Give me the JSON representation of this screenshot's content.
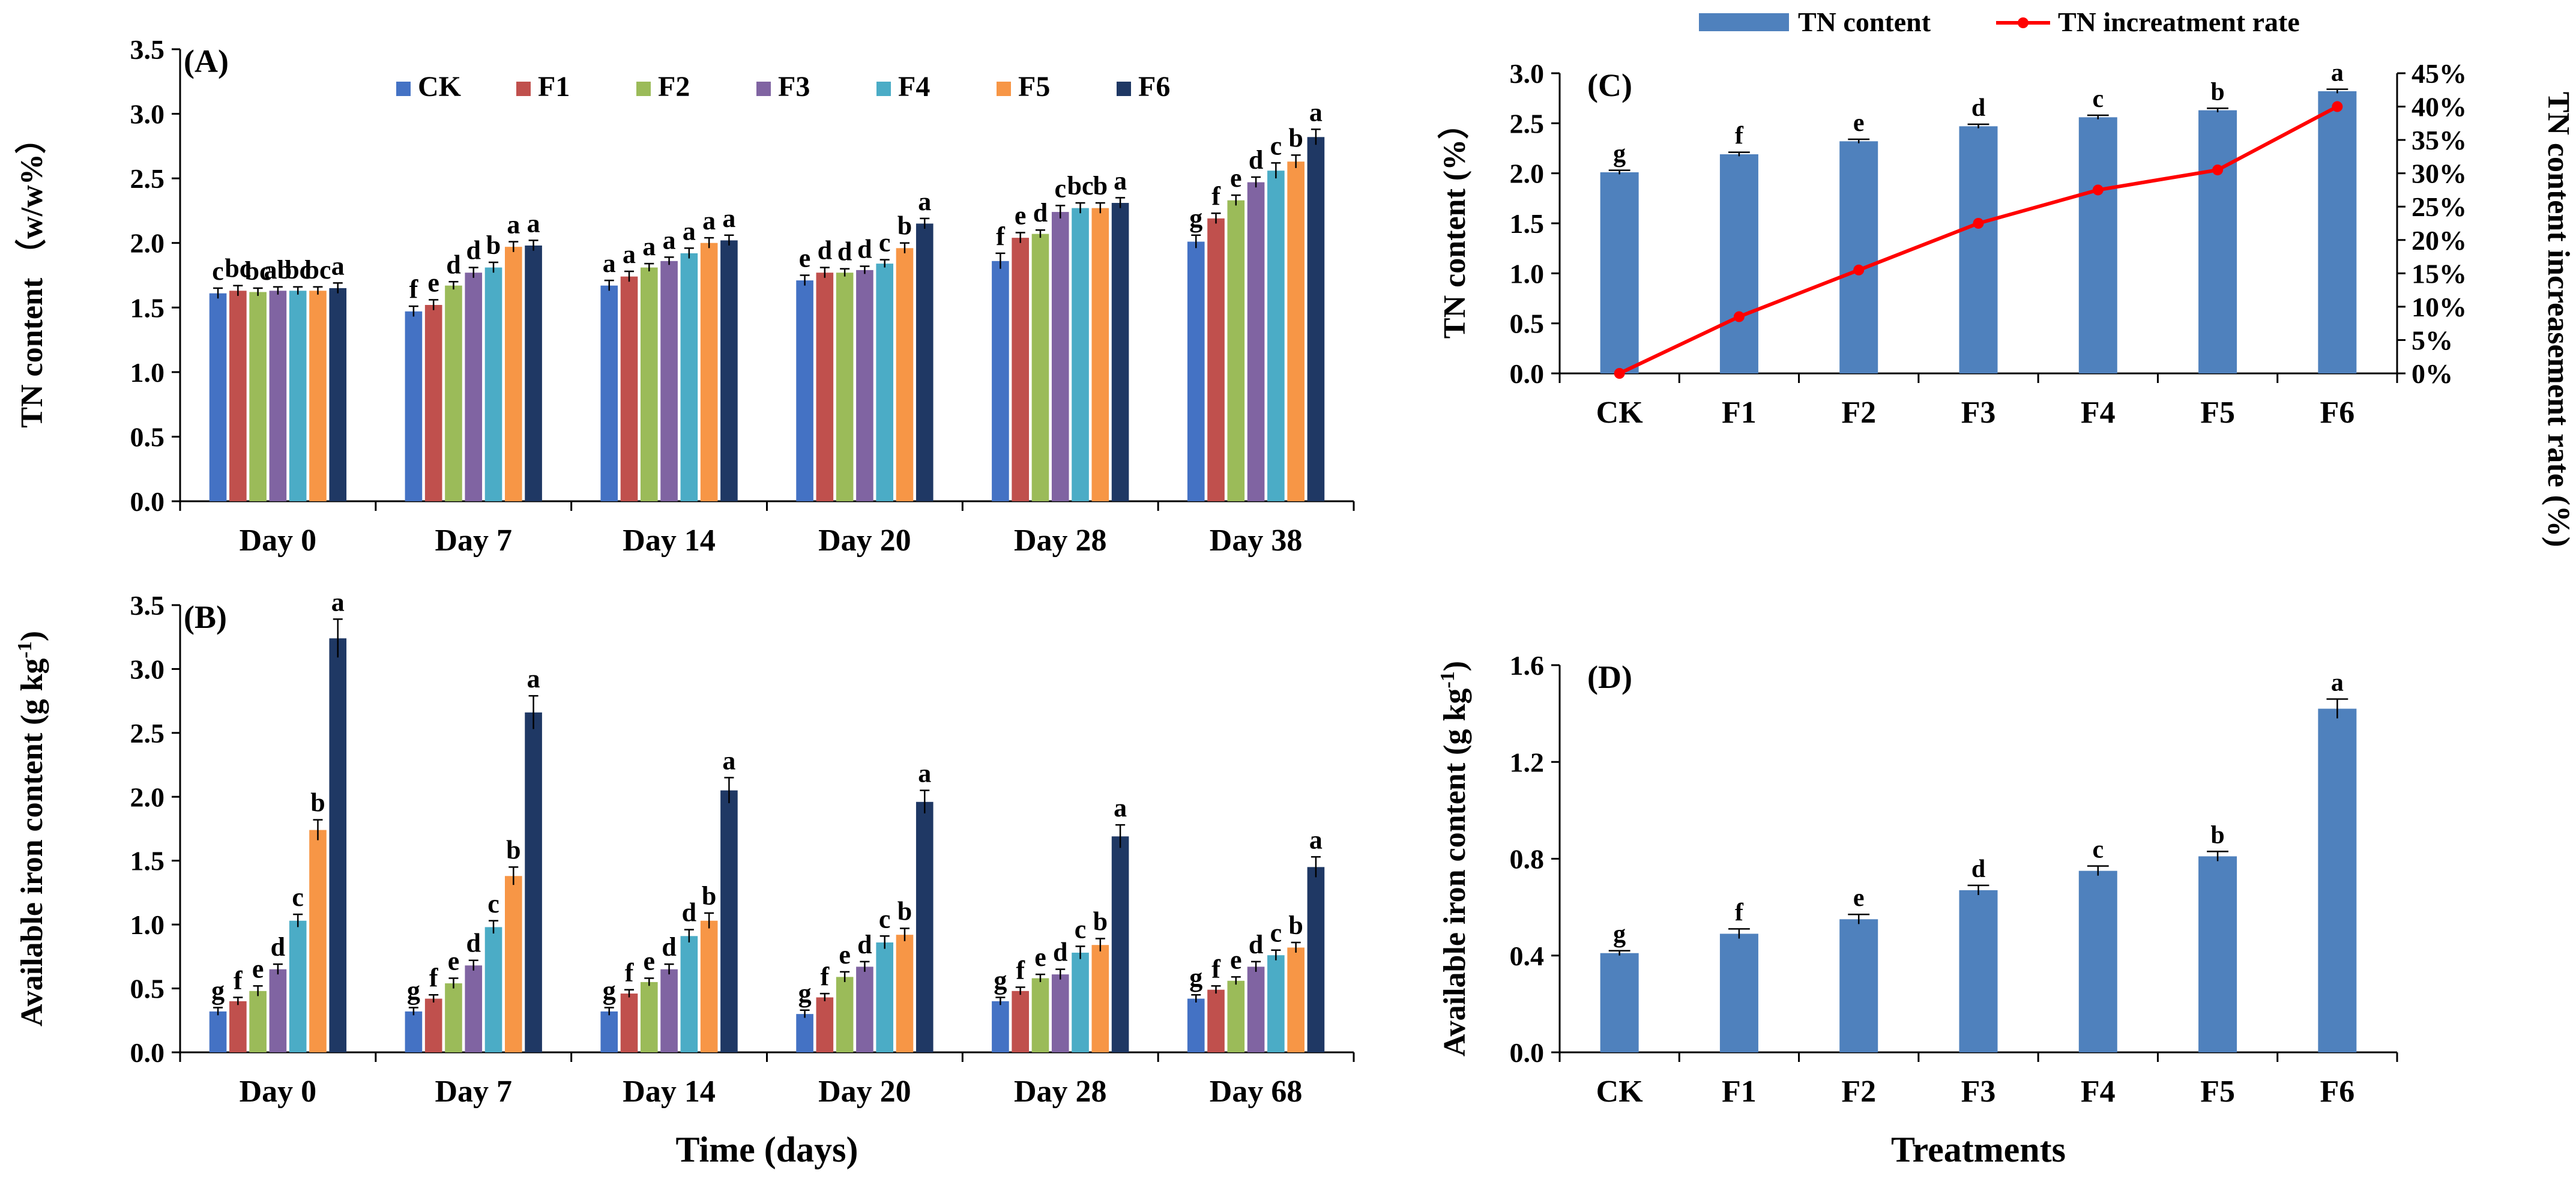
{
  "colors": {
    "CK": "#4472C4",
    "F1": "#C0504D",
    "F2": "#9BBB59",
    "F3": "#8064A2",
    "F4": "#4BACC6",
    "F5": "#F79646",
    "F6": "#1F3864",
    "single_bar": "#4F81BD",
    "rate_line": "#FF0000"
  },
  "chart_data": [
    {
      "id": "A",
      "panel_label": "(A)",
      "type": "bar",
      "ylabel": "TN content （w/w%）",
      "xlabel": "",
      "ylim": [
        0,
        3.5
      ],
      "yticks": [
        "0.0",
        "0.5",
        "1.0",
        "1.5",
        "2.0",
        "2.5",
        "3.0",
        "3.5"
      ],
      "legend": [
        "CK",
        "F1",
        "F2",
        "F3",
        "F4",
        "F5",
        "F6"
      ],
      "categories": [
        "Day 0",
        "Day 7",
        "Day 14",
        "Day 20",
        "Day 28",
        "Day 38"
      ],
      "series": [
        {
          "name": "CK",
          "values": [
            1.61,
            1.47,
            1.67,
            1.71,
            1.86,
            2.01
          ],
          "errors": [
            0.04,
            0.04,
            0.04,
            0.04,
            0.06,
            0.05
          ],
          "letters": [
            "c",
            "f",
            "a",
            "e",
            "f",
            "g"
          ]
        },
        {
          "name": "F1",
          "values": [
            1.63,
            1.52,
            1.74,
            1.77,
            2.04,
            2.19
          ],
          "errors": [
            0.04,
            0.04,
            0.04,
            0.04,
            0.04,
            0.04
          ],
          "letters": [
            "bc",
            "e",
            "a",
            "d",
            "e",
            "f"
          ]
        },
        {
          "name": "F2",
          "values": [
            1.62,
            1.67,
            1.81,
            1.77,
            2.07,
            2.33
          ],
          "errors": [
            0.03,
            0.03,
            0.03,
            0.03,
            0.03,
            0.04
          ],
          "letters": [
            "bc",
            "d",
            "a",
            "d",
            "d",
            "e"
          ]
        },
        {
          "name": "F3",
          "values": [
            1.63,
            1.77,
            1.86,
            1.79,
            2.24,
            2.47
          ],
          "errors": [
            0.03,
            0.04,
            0.03,
            0.03,
            0.05,
            0.04
          ],
          "letters": [
            "ab",
            "d",
            "a",
            "d",
            "c",
            "d"
          ]
        },
        {
          "name": "F4",
          "values": [
            1.63,
            1.81,
            1.92,
            1.84,
            2.27,
            2.56
          ],
          "errors": [
            0.03,
            0.04,
            0.04,
            0.03,
            0.04,
            0.06
          ],
          "letters": [
            "bc",
            "b",
            "a",
            "c",
            "bc",
            "c"
          ]
        },
        {
          "name": "F5",
          "values": [
            1.63,
            1.97,
            2.0,
            1.96,
            2.27,
            2.63
          ],
          "errors": [
            0.03,
            0.04,
            0.04,
            0.04,
            0.04,
            0.05
          ],
          "letters": [
            "bc",
            "a",
            "a",
            "b",
            "b",
            "b"
          ]
        },
        {
          "name": "F6",
          "values": [
            1.65,
            1.98,
            2.02,
            2.15,
            2.31,
            2.82
          ],
          "errors": [
            0.04,
            0.04,
            0.04,
            0.04,
            0.04,
            0.06
          ],
          "letters": [
            "a",
            "a",
            "a",
            "a",
            "a",
            "a"
          ]
        }
      ]
    },
    {
      "id": "B",
      "panel_label": "(B)",
      "type": "bar",
      "ylabel": "Available iron content (g kg",
      "ylabel_sup": "-1",
      "ylabel_end": ")",
      "xlabel": "Time (days)",
      "ylim": [
        0,
        3.5
      ],
      "yticks": [
        "0.0",
        "0.5",
        "1.0",
        "1.5",
        "2.0",
        "2.5",
        "3.0",
        "3.5"
      ],
      "categories": [
        "Day 0",
        "Day 7",
        "Day 14",
        "Day 20",
        "Day 28",
        "Day 68"
      ],
      "series": [
        {
          "name": "CK",
          "values": [
            0.32,
            0.32,
            0.32,
            0.3,
            0.4,
            0.42
          ],
          "errors": [
            0.03,
            0.03,
            0.03,
            0.03,
            0.03,
            0.03
          ],
          "letters": [
            "g",
            "g",
            "g",
            "g",
            "g",
            "g"
          ]
        },
        {
          "name": "F1",
          "values": [
            0.4,
            0.42,
            0.46,
            0.43,
            0.48,
            0.49
          ],
          "errors": [
            0.03,
            0.03,
            0.03,
            0.03,
            0.03,
            0.03
          ],
          "letters": [
            "f",
            "f",
            "f",
            "f",
            "f",
            "f"
          ]
        },
        {
          "name": "F2",
          "values": [
            0.48,
            0.54,
            0.55,
            0.59,
            0.58,
            0.56
          ],
          "errors": [
            0.04,
            0.04,
            0.03,
            0.04,
            0.03,
            0.03
          ],
          "letters": [
            "e",
            "e",
            "e",
            "e",
            "e",
            "e"
          ]
        },
        {
          "name": "F3",
          "values": [
            0.65,
            0.68,
            0.65,
            0.67,
            0.61,
            0.67
          ],
          "errors": [
            0.04,
            0.04,
            0.04,
            0.04,
            0.04,
            0.04
          ],
          "letters": [
            "d",
            "d",
            "d",
            "d",
            "d",
            "d"
          ]
        },
        {
          "name": "F4",
          "values": [
            1.03,
            0.98,
            0.91,
            0.86,
            0.78,
            0.76
          ],
          "errors": [
            0.05,
            0.05,
            0.05,
            0.05,
            0.05,
            0.04
          ],
          "letters": [
            "c",
            "c",
            "d",
            "c",
            "c",
            "c"
          ]
        },
        {
          "name": "F5",
          "values": [
            1.74,
            1.38,
            1.03,
            0.92,
            0.84,
            0.82
          ],
          "errors": [
            0.08,
            0.07,
            0.06,
            0.05,
            0.05,
            0.04
          ],
          "letters": [
            "b",
            "b",
            "b",
            "b",
            "b",
            "b"
          ]
        },
        {
          "name": "F6",
          "values": [
            3.24,
            2.66,
            2.05,
            1.96,
            1.69,
            1.45
          ],
          "errors": [
            0.15,
            0.13,
            0.1,
            0.09,
            0.09,
            0.08
          ],
          "letters": [
            "a",
            "a",
            "a",
            "a",
            "a",
            "a"
          ]
        }
      ]
    },
    {
      "id": "C",
      "panel_label": "(C)",
      "type": "bar",
      "ylabel": "TN content (%）",
      "y2label": "TN content increasement rate (%)",
      "ylim": [
        0,
        3.0
      ],
      "yticks": [
        "0.0",
        "0.5",
        "1.0",
        "1.5",
        "2.0",
        "2.5",
        "3.0"
      ],
      "y2lim": [
        0,
        45
      ],
      "y2ticks": [
        "0%",
        "5%",
        "10%",
        "15%",
        "20%",
        "25%",
        "30%",
        "35%",
        "40%",
        "45%"
      ],
      "legend": [
        "TN content",
        "TN increatment rate"
      ],
      "categories": [
        "CK",
        "F1",
        "F2",
        "F3",
        "F4",
        "F5",
        "F6"
      ],
      "series": [
        {
          "name": "TN content",
          "type": "bar",
          "values": [
            2.01,
            2.19,
            2.32,
            2.47,
            2.56,
            2.63,
            2.82
          ],
          "errors": [
            0.02,
            0.02,
            0.02,
            0.02,
            0.02,
            0.02,
            0.02
          ],
          "letters": [
            "g",
            "f",
            "e",
            "d",
            "c",
            "b",
            "a"
          ]
        },
        {
          "name": "TN increatment rate",
          "type": "line",
          "axis": "right",
          "values": [
            0,
            8.5,
            15.5,
            22.5,
            27.5,
            30.5,
            40.0
          ]
        }
      ]
    },
    {
      "id": "D",
      "panel_label": "(D)",
      "type": "bar",
      "ylabel": "Available iron content (g kg",
      "ylabel_sup": "-1",
      "ylabel_end": ")",
      "xlabel": "Treatments",
      "ylim": [
        0,
        1.6
      ],
      "yticks": [
        "0.0",
        "0.4",
        "0.8",
        "1.2",
        "1.6"
      ],
      "categories": [
        "CK",
        "F1",
        "F2",
        "F3",
        "F4",
        "F5",
        "F6"
      ],
      "series": [
        {
          "name": "Available iron",
          "values": [
            0.41,
            0.49,
            0.55,
            0.67,
            0.75,
            0.81,
            1.42
          ],
          "errors": [
            0.01,
            0.02,
            0.02,
            0.02,
            0.02,
            0.02,
            0.04
          ],
          "letters": [
            "g",
            "f",
            "e",
            "d",
            "c",
            "b",
            "a"
          ]
        }
      ]
    }
  ]
}
